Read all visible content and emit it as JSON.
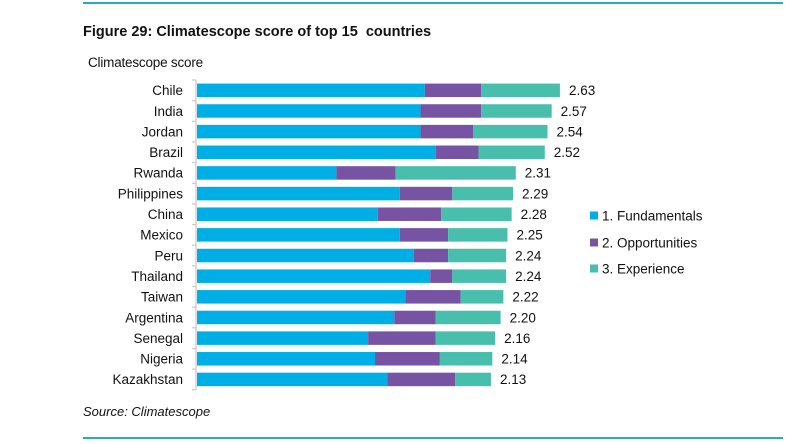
{
  "figure": {
    "title": "Figure 29: Climatescope score of top 15  countries",
    "source": "Source: Climatescope"
  },
  "colors": {
    "rule": "#2aa9c4",
    "fundamentals": "#00aee6",
    "opportunities": "#7754a3",
    "experience": "#48bfad"
  },
  "chart_data": {
    "type": "bar",
    "orientation": "horizontal",
    "stacked": true,
    "title": "Figure 29: Climatescope score of top 15  countries",
    "xlabel": "",
    "ylabel": "Climatescope score",
    "xlim": [
      0,
      2.63
    ],
    "grid": false,
    "legend_position": "right",
    "categories": [
      "Chile",
      "India",
      "Jordan",
      "Brazil",
      "Rwanda",
      "Philippines",
      "China",
      "Mexico",
      "Peru",
      "Thailand",
      "Taiwan",
      "Argentina",
      "Senegal",
      "Nigeria",
      "Kazakhstan"
    ],
    "series": [
      {
        "name": "1. Fundamentals",
        "color": "#00aee6",
        "values": [
          1.65,
          1.62,
          1.62,
          1.73,
          1.01,
          1.47,
          1.31,
          1.47,
          1.57,
          1.69,
          1.51,
          1.43,
          1.24,
          1.29,
          1.38
        ]
      },
      {
        "name": "2. Opportunities",
        "color": "#7754a3",
        "values": [
          0.41,
          0.44,
          0.38,
          0.31,
          0.43,
          0.38,
          0.46,
          0.35,
          0.25,
          0.16,
          0.4,
          0.3,
          0.49,
          0.47,
          0.49
        ]
      },
      {
        "name": "3. Experience",
        "color": "#48bfad",
        "values": [
          0.57,
          0.51,
          0.54,
          0.48,
          0.87,
          0.44,
          0.51,
          0.43,
          0.42,
          0.39,
          0.31,
          0.47,
          0.43,
          0.38,
          0.26
        ]
      }
    ],
    "totals": [
      2.63,
      2.57,
      2.54,
      2.52,
      2.31,
      2.29,
      2.28,
      2.25,
      2.24,
      2.24,
      2.22,
      2.2,
      2.16,
      2.14,
      2.13
    ],
    "total_labels": [
      "2.63",
      "2.57",
      "2.54",
      "2.52",
      "2.31",
      "2.29",
      "2.28",
      "2.25",
      "2.24",
      "2.24",
      "2.22",
      "2.20",
      "2.16",
      "2.14",
      "2.13"
    ]
  }
}
